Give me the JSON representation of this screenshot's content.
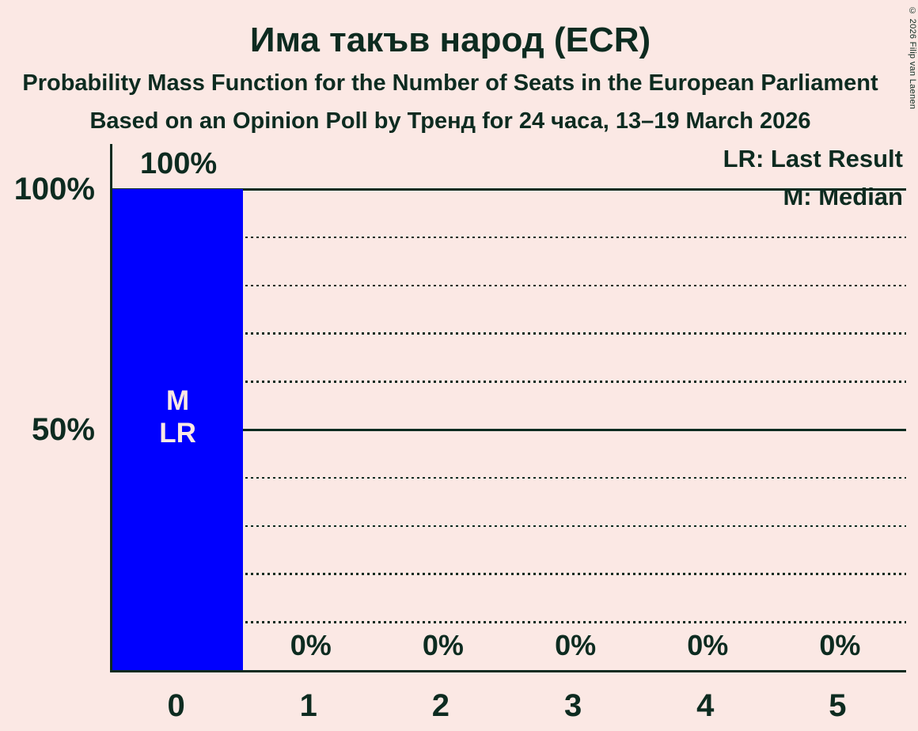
{
  "title": "Има такъв народ (ECR)",
  "subtitle": "Probability Mass Function for the Number of Seats in the European Parliament",
  "sub_subtitle": "Based on an Opinion Poll by Тренд for 24 часа, 13–19 March 2026",
  "copyright": "© 2026 Filip van Laenen",
  "legend": {
    "lr": "LR: Last Result",
    "m": "M: Median"
  },
  "colors": {
    "background": "#fbe8e4",
    "text": "#0d2b20",
    "bar": "#0000ff",
    "bar_label": "#fbe8e4"
  },
  "chart_data": {
    "type": "bar",
    "title": "Има такъв народ (ECR)",
    "xlabel": "",
    "ylabel": "",
    "categories": [
      "0",
      "1",
      "2",
      "3",
      "4",
      "5"
    ],
    "values": [
      100,
      0,
      0,
      0,
      0,
      0
    ],
    "value_labels": [
      "100%",
      "0%",
      "0%",
      "0%",
      "0%",
      "0%"
    ],
    "ylim": [
      0,
      100
    ],
    "yticks": [
      {
        "pct": 100,
        "label": "100%"
      },
      {
        "pct": 50,
        "label": "50%"
      }
    ],
    "gridlines": {
      "solid": [
        100,
        50
      ],
      "dotted": [
        90,
        80,
        70,
        60,
        40,
        30,
        20,
        10
      ]
    },
    "legend_position": "top-right",
    "median_seat": 0,
    "last_result_seat": 0,
    "bar_annotations": {
      "0": "M\nLR"
    }
  }
}
